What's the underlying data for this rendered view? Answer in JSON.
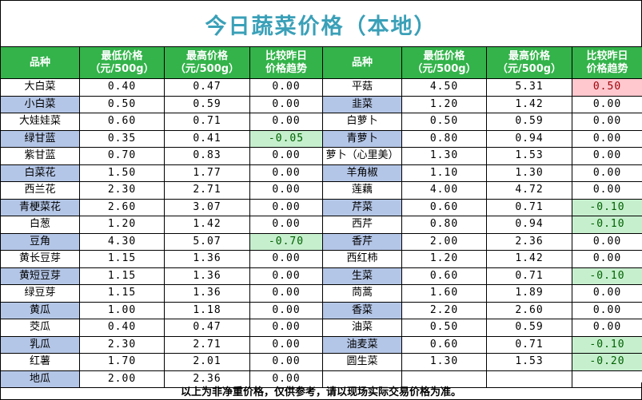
{
  "title": "今日蔬菜价格（本地）",
  "headers": {
    "name": "品种",
    "min_l1": "最低价格",
    "min_l2": "（元/500g）",
    "max_l1": "最高价格",
    "max_l2": "（元/500g）",
    "trend_l1": "比较昨日",
    "trend_l2": "价格趋势"
  },
  "colors": {
    "header_bg": "#33b34a",
    "title": "#3aa0b8",
    "row_alt": "#b4c6e7",
    "up_bg": "#ffc7ce",
    "down_bg": "#c6efce"
  },
  "left_items": [
    {
      "name": "大白菜",
      "min": "0.40",
      "max": "0.47",
      "trend": "0.00",
      "alt": false,
      "state": "flat"
    },
    {
      "name": "小白菜",
      "min": "0.50",
      "max": "0.59",
      "trend": "0.00",
      "alt": true,
      "state": "flat"
    },
    {
      "name": "大娃娃菜",
      "min": "0.60",
      "max": "0.71",
      "trend": "0.00",
      "alt": false,
      "state": "flat"
    },
    {
      "name": "绿甘蓝",
      "min": "0.35",
      "max": "0.41",
      "trend": "-0.05",
      "alt": true,
      "state": "down"
    },
    {
      "name": "紫甘蓝",
      "min": "0.70",
      "max": "0.83",
      "trend": "0.00",
      "alt": false,
      "state": "flat"
    },
    {
      "name": "白菜花",
      "min": "1.50",
      "max": "1.77",
      "trend": "0.00",
      "alt": true,
      "state": "flat"
    },
    {
      "name": "西兰花",
      "min": "2.30",
      "max": "2.71",
      "trend": "0.00",
      "alt": false,
      "state": "flat"
    },
    {
      "name": "青梗菜花",
      "min": "2.60",
      "max": "3.07",
      "trend": "0.00",
      "alt": true,
      "state": "flat"
    },
    {
      "name": "白葱",
      "min": "1.20",
      "max": "1.42",
      "trend": "0.00",
      "alt": false,
      "state": "flat"
    },
    {
      "name": "豆角",
      "min": "4.30",
      "max": "5.07",
      "trend": "-0.70",
      "alt": true,
      "state": "down"
    },
    {
      "name": "黄长豆芽",
      "min": "1.15",
      "max": "1.36",
      "trend": "0.00",
      "alt": false,
      "state": "flat"
    },
    {
      "name": "黄短豆芽",
      "min": "1.15",
      "max": "1.36",
      "trend": "0.00",
      "alt": true,
      "state": "flat"
    },
    {
      "name": "绿豆芽",
      "min": "1.15",
      "max": "1.36",
      "trend": "0.00",
      "alt": false,
      "state": "flat"
    },
    {
      "name": "黄瓜",
      "min": "1.00",
      "max": "1.18",
      "trend": "0.00",
      "alt": true,
      "state": "flat"
    },
    {
      "name": "茭瓜",
      "min": "0.40",
      "max": "0.47",
      "trend": "0.00",
      "alt": false,
      "state": "flat"
    },
    {
      "name": "乳瓜",
      "min": "2.30",
      "max": "2.71",
      "trend": "0.00",
      "alt": true,
      "state": "flat"
    },
    {
      "name": "红薯",
      "min": "1.70",
      "max": "2.01",
      "trend": "0.00",
      "alt": false,
      "state": "flat"
    },
    {
      "name": "地瓜",
      "min": "2.00",
      "max": "2.36",
      "trend": "0.00",
      "alt": true,
      "state": "flat"
    }
  ],
  "right_items": [
    {
      "name": "平菇",
      "min": "4.50",
      "max": "5.31",
      "trend": "0.50",
      "alt": false,
      "state": "up"
    },
    {
      "name": "韭菜",
      "min": "1.20",
      "max": "1.42",
      "trend": "0.00",
      "alt": true,
      "state": "flat"
    },
    {
      "name": "白萝卜",
      "min": "0.50",
      "max": "0.59",
      "trend": "0.00",
      "alt": false,
      "state": "flat"
    },
    {
      "name": "青萝卜",
      "min": "0.80",
      "max": "0.94",
      "trend": "0.00",
      "alt": true,
      "state": "flat"
    },
    {
      "name": "萝卜（心里美）",
      "min": "1.30",
      "max": "1.53",
      "trend": "0.00",
      "alt": false,
      "state": "flat"
    },
    {
      "name": "羊角椒",
      "min": "1.10",
      "max": "1.30",
      "trend": "0.00",
      "alt": true,
      "state": "flat"
    },
    {
      "name": "莲藕",
      "min": "4.00",
      "max": "4.72",
      "trend": "0.00",
      "alt": false,
      "state": "flat"
    },
    {
      "name": "芹菜",
      "min": "0.60",
      "max": "0.71",
      "trend": "-0.10",
      "alt": true,
      "state": "down"
    },
    {
      "name": "西芹",
      "min": "0.80",
      "max": "0.94",
      "trend": "-0.10",
      "alt": false,
      "state": "down"
    },
    {
      "name": "香芹",
      "min": "2.00",
      "max": "2.36",
      "trend": "0.00",
      "alt": true,
      "state": "flat"
    },
    {
      "name": "西红柿",
      "min": "1.20",
      "max": "1.42",
      "trend": "0.00",
      "alt": false,
      "state": "flat"
    },
    {
      "name": "生菜",
      "min": "0.60",
      "max": "0.71",
      "trend": "-0.10",
      "alt": true,
      "state": "down"
    },
    {
      "name": "茼蒿",
      "min": "1.60",
      "max": "1.89",
      "trend": "0.00",
      "alt": false,
      "state": "flat"
    },
    {
      "name": "香菜",
      "min": "2.20",
      "max": "2.60",
      "trend": "0.00",
      "alt": true,
      "state": "flat"
    },
    {
      "name": "油菜",
      "min": "0.50",
      "max": "0.59",
      "trend": "0.00",
      "alt": false,
      "state": "flat"
    },
    {
      "name": "油麦菜",
      "min": "0.60",
      "max": "0.71",
      "trend": "-0.10",
      "alt": true,
      "state": "down"
    },
    {
      "name": "圆生菜",
      "min": "1.30",
      "max": "1.53",
      "trend": "-0.20",
      "alt": false,
      "state": "down"
    },
    {
      "name": "",
      "min": "",
      "max": "",
      "trend": "",
      "alt": false,
      "state": "empty"
    }
  ],
  "footer": "以上为非净重价格，仅供参考，请以现场实际交易价格为准。"
}
